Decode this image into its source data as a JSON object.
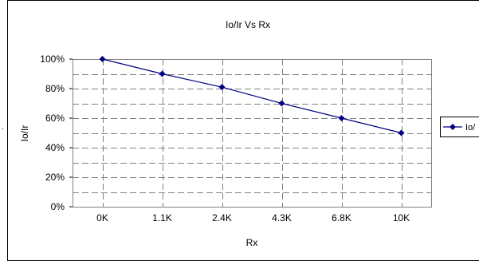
{
  "chart_data": {
    "type": "line",
    "title": "Io/Ir Vs Rx",
    "xlabel": "Rx",
    "ylabel": "Io/Ir",
    "categories": [
      "0K",
      "1.1K",
      "2.4K",
      "4.3K",
      "6.8K",
      "10K"
    ],
    "series": [
      {
        "name": "Io/",
        "values": [
          100,
          90,
          81,
          70,
          60,
          50
        ]
      }
    ],
    "ylim": [
      0,
      100
    ],
    "yticks": [
      0,
      20,
      40,
      60,
      80,
      100
    ],
    "ytick_labels": [
      "0%",
      "20%",
      "40%",
      "60%",
      "80%",
      "100%"
    ],
    "grid": true,
    "legend": "right",
    "colors": {
      "series": "#000080",
      "grid": "#808080",
      "axis": "#000000"
    }
  }
}
